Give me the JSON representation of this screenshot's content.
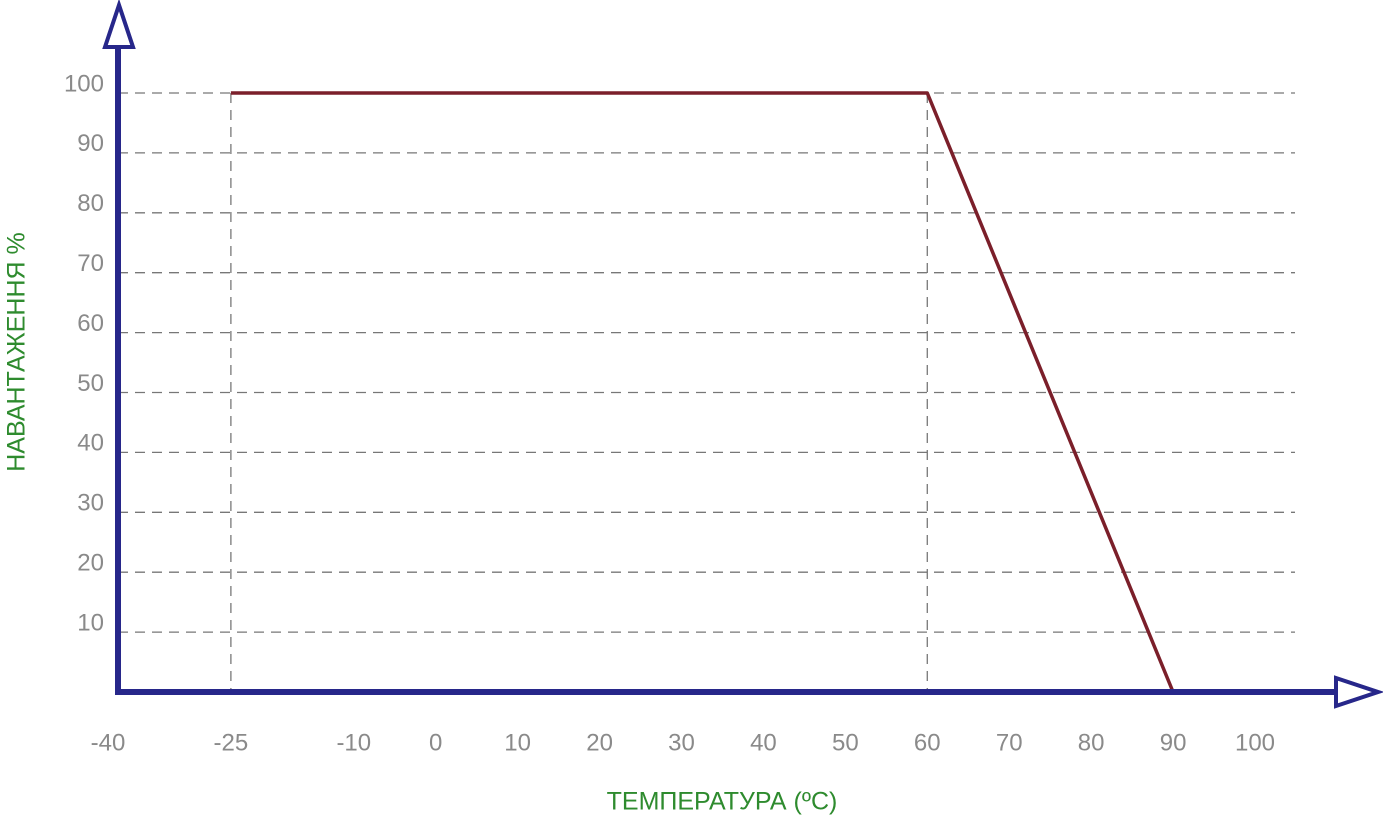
{
  "chart_data": {
    "type": "line",
    "x_label": "ТЕМПЕРАТУРА (ºC)",
    "y_label": "НАВАНТАЖЕННЯ %",
    "x": [
      -25,
      60,
      90
    ],
    "series": [
      {
        "color": "#7b1f2a",
        "values": [
          100,
          100,
          0
        ]
      }
    ],
    "xlim": [
      -40,
      100
    ],
    "xticks": [
      -40,
      -25,
      -10,
      0,
      10,
      20,
      30,
      40,
      50,
      60,
      70,
      80,
      90,
      100
    ],
    "ylim": [
      0,
      100
    ],
    "yticks": [
      10,
      20,
      30,
      40,
      50,
      60,
      70,
      80,
      90,
      100
    ],
    "grid": true
  }
}
